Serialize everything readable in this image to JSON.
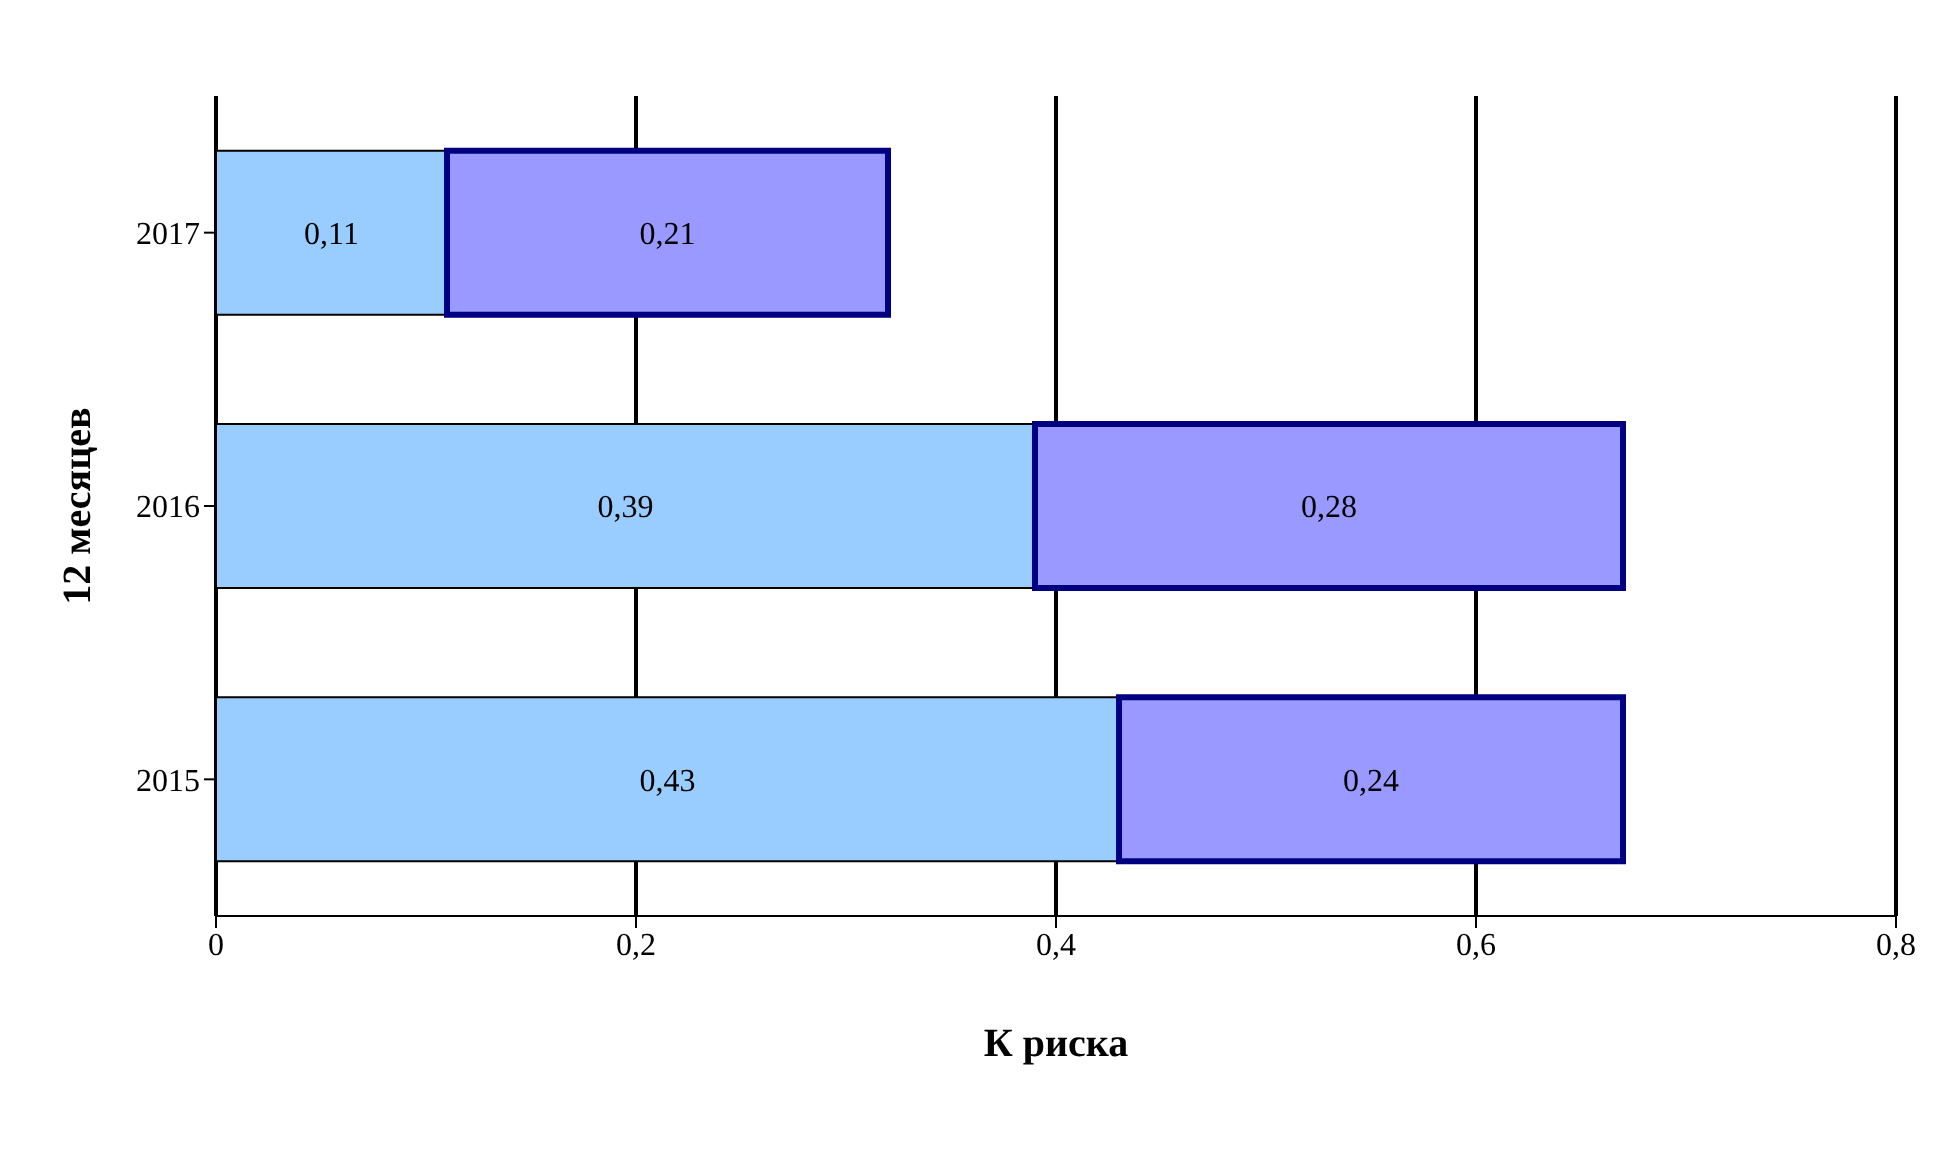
{
  "chart_data": {
    "type": "bar",
    "orientation": "horizontal",
    "stacked": true,
    "xlabel": "К риска",
    "ylabel": "12 месяцев",
    "categories": [
      "2017",
      "2016",
      "2015"
    ],
    "series": [
      {
        "color": "#99ccff",
        "values": [
          0.11,
          0.39,
          0.43
        ],
        "value_labels": [
          "0,11",
          "0,39",
          "0,43"
        ]
      },
      {
        "color": "#9999ff",
        "values": [
          0.21,
          0.28,
          0.24
        ],
        "value_labels": [
          "0,21",
          "0,28",
          "0,24"
        ]
      }
    ],
    "xlim": [
      0,
      0.8
    ],
    "xticks": [
      0,
      {
        "value": 0.2,
        "label": "0,2"
      },
      {
        "value": 0.4,
        "label": "0,4"
      },
      {
        "value": 0.6,
        "label": "0,6"
      },
      {
        "value": 0.8,
        "label": "0,8"
      }
    ],
    "grid": "x"
  }
}
